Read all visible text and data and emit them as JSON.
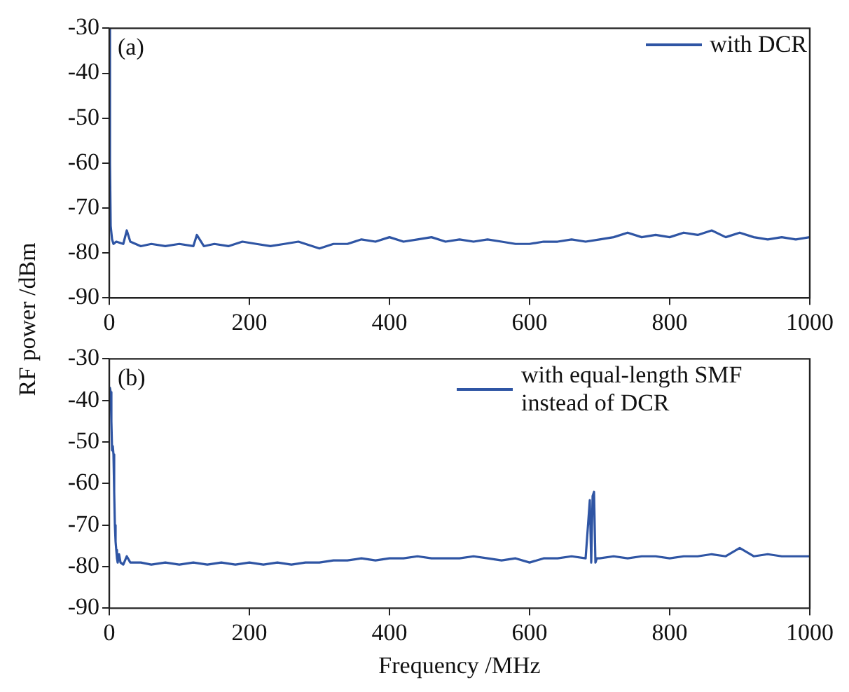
{
  "chart_data": [
    {
      "type": "line",
      "ylabel": "RF power /dBm",
      "annotations": [
        "(a)"
      ],
      "xlim": [
        0,
        1000
      ],
      "ylim": [
        -90,
        -30
      ],
      "xticks": [
        0,
        200,
        400,
        600,
        800,
        1000
      ],
      "yticks": [
        -90,
        -80,
        -70,
        -60,
        -50,
        -40,
        -30
      ],
      "grid": false,
      "legend": "top right",
      "marker": "none",
      "line_style": "solid",
      "series": [
        {
          "name": "with DCR",
          "color": "#2f55a4",
          "x": [
            0,
            1,
            2,
            4,
            6,
            10,
            20,
            25,
            30,
            45,
            60,
            80,
            100,
            120,
            125,
            135,
            150,
            170,
            190,
            210,
            230,
            250,
            270,
            290,
            300,
            320,
            340,
            360,
            380,
            400,
            420,
            440,
            460,
            480,
            500,
            520,
            540,
            560,
            580,
            600,
            620,
            640,
            660,
            680,
            700,
            720,
            740,
            760,
            780,
            800,
            820,
            840,
            860,
            880,
            900,
            920,
            940,
            960,
            980,
            1000
          ],
          "values": [
            -30,
            -60,
            -74,
            -77,
            -78,
            -77.5,
            -78,
            -75,
            -77.5,
            -78.5,
            -78,
            -78.5,
            -78,
            -78.5,
            -76,
            -78.5,
            -78,
            -78.5,
            -77.5,
            -78,
            -78.5,
            -78,
            -77.5,
            -78.5,
            -79,
            -78,
            -78,
            -77,
            -77.5,
            -76.5,
            -77.5,
            -77,
            -76.5,
            -77.5,
            -77,
            -77.5,
            -77,
            -77.5,
            -78,
            -78,
            -77.5,
            -77.5,
            -77,
            -77.5,
            -77,
            -76.5,
            -75.5,
            -76.5,
            -76,
            -76.5,
            -75.5,
            -76,
            -75,
            -76.5,
            -75.5,
            -76.5,
            -77,
            -76.5,
            -77,
            -76.5
          ]
        }
      ]
    },
    {
      "type": "line",
      "xlabel": "Frequency /MHz",
      "annotations": [
        "(b)"
      ],
      "xlim": [
        0,
        1000
      ],
      "ylim": [
        -90,
        -30
      ],
      "xticks": [
        0,
        200,
        400,
        600,
        800,
        1000
      ],
      "yticks": [
        -90,
        -80,
        -70,
        -60,
        -50,
        -40,
        -30
      ],
      "grid": false,
      "legend": "top right",
      "marker": "none",
      "line_style": "solid",
      "series": [
        {
          "name": "with equal-length SMF instead of DCR",
          "color": "#2f55a4",
          "x": [
            0,
            1,
            2,
            3,
            4,
            5,
            6,
            7,
            8,
            9,
            10,
            11,
            12,
            14,
            16,
            20,
            25,
            30,
            45,
            60,
            80,
            100,
            120,
            140,
            160,
            180,
            200,
            220,
            240,
            260,
            280,
            300,
            320,
            340,
            360,
            380,
            400,
            420,
            440,
            460,
            480,
            500,
            520,
            540,
            560,
            580,
            600,
            620,
            640,
            660,
            680,
            686,
            688,
            690,
            692,
            694,
            696,
            700,
            720,
            740,
            760,
            780,
            800,
            820,
            840,
            860,
            880,
            900,
            920,
            940,
            960,
            980,
            1000
          ],
          "values": [
            -42,
            -37,
            -38,
            -45,
            -52,
            -51,
            -53,
            -62,
            -70,
            -74,
            -76,
            -78,
            -79,
            -77,
            -79,
            -79.5,
            -77.5,
            -79,
            -79,
            -79.5,
            -79,
            -79.5,
            -79,
            -79.5,
            -79,
            -79.5,
            -79,
            -79.5,
            -79,
            -79.5,
            -79,
            -79,
            -78.5,
            -78.5,
            -78,
            -78.5,
            -78,
            -78,
            -77.5,
            -78,
            -78,
            -78,
            -77.5,
            -78,
            -78.5,
            -78,
            -79,
            -78,
            -78,
            -77.5,
            -78,
            -64,
            -79,
            -63,
            -62,
            -79,
            -78,
            -78,
            -77.5,
            -78,
            -77.5,
            -77.5,
            -78,
            -77.5,
            -77.5,
            -77,
            -77.5,
            -75.5,
            -77.5,
            -77,
            -77.5,
            -77.5,
            -77.5
          ]
        }
      ]
    }
  ]
}
